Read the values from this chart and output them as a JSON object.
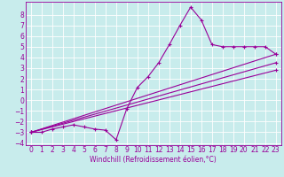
{
  "xlabel": "Windchill (Refroidissement éolien,°C)",
  "background_color": "#c8ecec",
  "grid_color": "#ffffff",
  "line_color": "#990099",
  "xlim": [
    -0.5,
    23.5
  ],
  "ylim": [
    -4.2,
    9.2
  ],
  "xticks": [
    0,
    1,
    2,
    3,
    4,
    5,
    6,
    7,
    8,
    9,
    10,
    11,
    12,
    13,
    14,
    15,
    16,
    17,
    18,
    19,
    20,
    21,
    22,
    23
  ],
  "yticks": [
    -4,
    -3,
    -2,
    -1,
    0,
    1,
    2,
    3,
    4,
    5,
    6,
    7,
    8
  ],
  "line1_x": [
    0,
    1,
    2,
    3,
    4,
    5,
    6,
    7,
    8,
    9,
    10,
    11,
    12,
    13,
    14,
    15,
    16,
    17,
    18,
    19,
    20,
    21,
    22,
    23
  ],
  "line1_y": [
    -3.0,
    -3.0,
    -2.7,
    -2.5,
    -2.3,
    -2.5,
    -2.7,
    -2.8,
    -3.7,
    -0.8,
    1.2,
    2.2,
    3.5,
    5.2,
    7.0,
    8.7,
    7.5,
    5.2,
    5.0,
    5.0,
    5.0,
    5.0,
    5.0,
    4.3
  ],
  "line2_x": [
    0,
    23
  ],
  "line2_y": [
    -3.0,
    4.3
  ],
  "line3_x": [
    0,
    23
  ],
  "line3_y": [
    -3.0,
    3.5
  ],
  "line4_x": [
    0,
    23
  ],
  "line4_y": [
    -3.0,
    2.8
  ],
  "tick_fontsize": 5.5,
  "xlabel_fontsize": 5.5
}
